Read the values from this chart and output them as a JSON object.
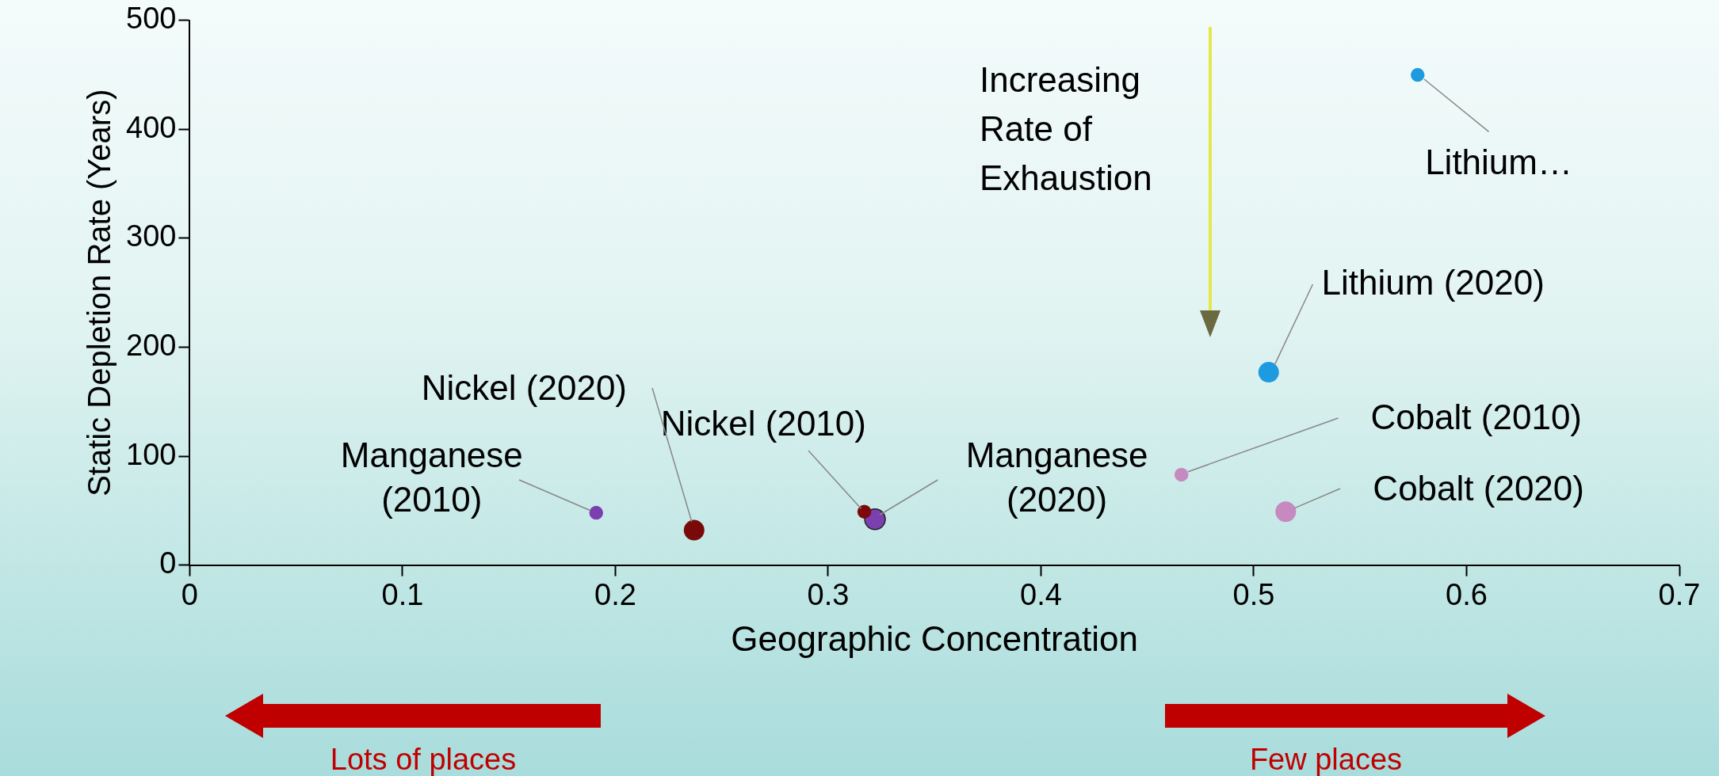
{
  "chart_data": {
    "type": "bubble",
    "xlabel": "Geographic Concentration",
    "ylabel": "Static Depletion Rate (Years)",
    "xlim": [
      0,
      0.7
    ],
    "xticks": [
      0,
      0.1,
      0.2,
      0.3,
      0.4,
      0.5,
      0.6,
      0.7
    ],
    "ylim": [
      0,
      500
    ],
    "yticks": [
      0,
      100,
      200,
      300,
      400,
      500
    ],
    "grid": false,
    "legend": false,
    "series": [
      {
        "name": "Manganese (2010)",
        "color": "#7b3fb0",
        "x": [
          0.191
        ],
        "values": [
          48
        ],
        "sizes": [
          0.45
        ]
      },
      {
        "name": "Nickel (2020)",
        "color": "#7a0a0a",
        "x": [
          0.237
        ],
        "values": [
          32
        ],
        "sizes": [
          1
        ]
      },
      {
        "name": "Nickel (2010)",
        "color": "#7a0a0a",
        "x": [
          0.317
        ],
        "values": [
          49
        ],
        "sizes": [
          0.45
        ]
      },
      {
        "name": "Manganese (2020)",
        "color": "#7b3fb0",
        "x": [
          0.322
        ],
        "values": [
          42
        ],
        "sizes": [
          1
        ]
      },
      {
        "name": "Cobalt (2010)",
        "color": "#c68ac0",
        "x": [
          0.466
        ],
        "values": [
          83
        ],
        "sizes": [
          0.45
        ]
      },
      {
        "name": "Cobalt (2020)",
        "color": "#c68ac0",
        "x": [
          0.515
        ],
        "values": [
          49
        ],
        "sizes": [
          1
        ]
      },
      {
        "name": "Lithium (2020)",
        "color": "#1e9be0",
        "x": [
          0.507
        ],
        "values": [
          177
        ],
        "sizes": [
          1
        ]
      },
      {
        "name": "Lithium…",
        "color": "#1e9be0",
        "x": [
          0.577
        ],
        "values": [
          450
        ],
        "sizes": [
          0.45
        ]
      }
    ],
    "annotations": [
      "Increasing Rate of Exhaustion",
      "Lots of places",
      "Few places"
    ]
  }
}
